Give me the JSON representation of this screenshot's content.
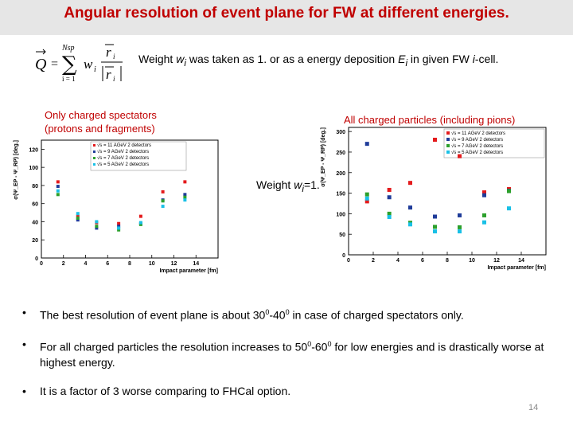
{
  "slide": {
    "title": "Angular resolution of event plane for FW at different energies.",
    "formula": {
      "lhs": "Q",
      "sum_upper": "Nsp",
      "sum_lower": "i = 1",
      "weight": "w",
      "index": "i",
      "vector": "r"
    },
    "weight_note": {
      "prefix": "Weight ",
      "w": "w",
      "i": "i",
      "mid": " was taken as 1. or as a energy deposition ",
      "E": "E",
      "tail": " in given FW ",
      "icell": "i",
      "cell": "-cell."
    },
    "left_note": [
      "Only charged spectators",
      "(protons and fragments)"
    ],
    "right_note": "All charged particles (including pions)",
    "weight_one": {
      "prefix": "Weight ",
      "w": "w",
      "i": "i",
      "suffix": "=1."
    },
    "bullets": [
      {
        "pre": "The best resolution of event plane is about 30",
        "sup1": "0",
        "mid": "-40",
        "sup2": "0",
        "post": " in case of charged spectators only."
      },
      {
        "pre": "For all charged particles the resolution increases to 50",
        "sup1": "0",
        "mid": "-60",
        "sup2": "0",
        "post": " for low energies and is drastically worse at highest energy."
      },
      {
        "pre": "It is a factor of 3 worse comparing to FHCal option.",
        "sup1": "",
        "mid": "",
        "sup2": "",
        "post": ""
      }
    ],
    "bullet_symbol": "•",
    "page_number": "14"
  },
  "chart_data": [
    {
      "type": "scatter",
      "xlabel": "Impact parameter [fm]",
      "ylabel": "σ(Ψ_EP - Ψ_RP) [deg.]",
      "xlim": [
        0,
        16
      ],
      "ylim": [
        0,
        130
      ],
      "xticks": [
        0,
        2,
        4,
        6,
        8,
        10,
        12,
        14
      ],
      "yticks": [
        0,
        20,
        40,
        60,
        80,
        100,
        120
      ],
      "legend_position": "top-right",
      "series": [
        {
          "name": "√s = 11 AGeV 2 detectors",
          "color": "#e41a1c",
          "x": [
            1.5,
            3.3,
            5,
            7,
            9,
            11,
            13
          ],
          "y": [
            84,
            46,
            39,
            38,
            46,
            73,
            84
          ]
        },
        {
          "name": "√s = 9 AGeV 2 detectors",
          "color": "#1f3c99",
          "x": [
            1.5,
            3.3,
            5,
            7,
            9,
            11,
            13
          ],
          "y": [
            79,
            42,
            33,
            35,
            38,
            64,
            70
          ]
        },
        {
          "name": "√s = 7 AGeV 2 detectors",
          "color": "#2ca02c",
          "x": [
            1.5,
            3.3,
            5,
            7,
            9,
            11,
            13
          ],
          "y": [
            70,
            44,
            35,
            31,
            37,
            63,
            67
          ]
        },
        {
          "name": "√s = 5 AGeV 2 detectors",
          "color": "#19c0e6",
          "x": [
            1.5,
            3.3,
            5,
            7,
            9,
            11,
            13
          ],
          "y": [
            74,
            49,
            40,
            33,
            39,
            57,
            64
          ]
        }
      ]
    },
    {
      "type": "scatter",
      "xlabel": "Impact parameter [fm]",
      "ylabel": "σ(Ψ_EP - Ψ_RP) [deg.]",
      "xlim": [
        0,
        16
      ],
      "ylim": [
        0,
        310
      ],
      "xticks": [
        0,
        2,
        4,
        6,
        8,
        10,
        12,
        14
      ],
      "yticks": [
        0,
        50,
        100,
        150,
        200,
        250,
        300
      ],
      "legend_position": "top-right",
      "series": [
        {
          "name": "√s = 11 AGeV 2 detectors",
          "color": "#e41a1c",
          "x": [
            1.5,
            3.3,
            5,
            7,
            9,
            11,
            13
          ],
          "y": [
            130,
            158,
            175,
            280,
            240,
            152,
            160
          ]
        },
        {
          "name": "√s = 9 AGeV 2 detectors",
          "color": "#1f3c99",
          "x": [
            1.5,
            3.3,
            5,
            7,
            9,
            11,
            13
          ],
          "y": [
            270,
            140,
            115,
            93,
            96,
            145,
            156
          ]
        },
        {
          "name": "√s = 7 AGeV 2 detectors",
          "color": "#2ca02c",
          "x": [
            1.5,
            3.3,
            5,
            7,
            9,
            11,
            13
          ],
          "y": [
            147,
            100,
            78,
            68,
            67,
            96,
            155
          ]
        },
        {
          "name": "√s = 5 AGeV 2 detectors",
          "color": "#19c0e6",
          "x": [
            1.5,
            3.3,
            5,
            7,
            9,
            11,
            13
          ],
          "y": [
            137,
            92,
            74,
            57,
            57,
            79,
            113
          ]
        }
      ]
    }
  ]
}
